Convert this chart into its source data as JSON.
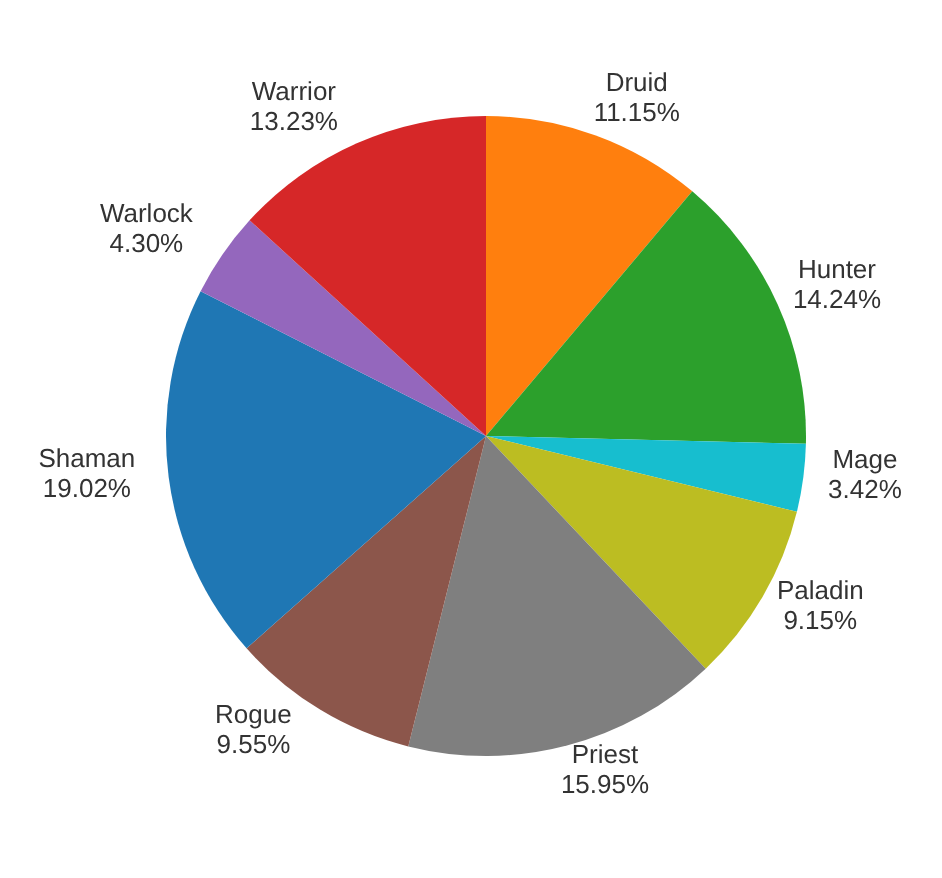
{
  "chart_data": {
    "type": "pie",
    "categories": [
      "Druid",
      "Hunter",
      "Mage",
      "Paladin",
      "Priest",
      "Rogue",
      "Shaman",
      "Warlock",
      "Warrior"
    ],
    "values": [
      11.15,
      14.24,
      3.42,
      9.15,
      15.95,
      9.55,
      19.02,
      4.3,
      13.23
    ],
    "value_labels": [
      "11.15%",
      "14.24%",
      "3.42%",
      "9.15%",
      "15.95%",
      "9.55%",
      "19.02%",
      "4.30%",
      "13.23%"
    ],
    "colors": [
      "#ff7f0e",
      "#2ca02c",
      "#17becf",
      "#bcbd22",
      "#7f7f7f",
      "#8c564b",
      "#1f77b4",
      "#9467bd",
      "#d62728"
    ],
    "legend": false
  }
}
